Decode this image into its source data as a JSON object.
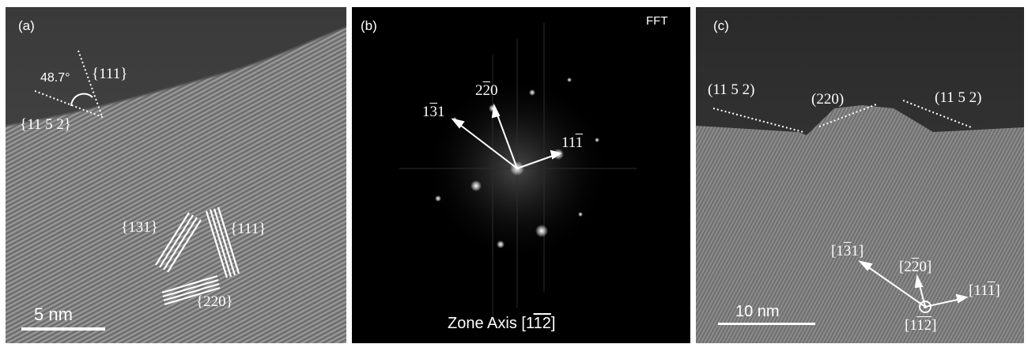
{
  "panel_a": {
    "label": "(a)",
    "angle": "48.7°",
    "facet_top": "{111}",
    "facet_left": "{11 5 2}",
    "lattice_131": "{131}",
    "lattice_111": "{111}",
    "lattice_220": "{220}",
    "scale_bar": "5 nm"
  },
  "panel_b": {
    "label": "(b)",
    "title": "FFT",
    "spot_131": {
      "pre": "1",
      "bar": "3",
      "post": "1"
    },
    "spot_220": {
      "pre": "2",
      "bar": "2",
      "post": "0"
    },
    "spot_111": {
      "pre": "11",
      "bar": "1",
      "post": ""
    },
    "zone_axis": {
      "pre": "Zone Axis [1",
      "bar1": "1",
      "bar2": "2",
      "post": "]"
    }
  },
  "panel_c": {
    "label": "(c)",
    "facet_left": "(11 5 2)",
    "facet_mid": "(220)",
    "facet_right": "(11 5 2)",
    "dir_131": {
      "pre": "[1",
      "bar": "3",
      "post": "1]"
    },
    "dir_220": {
      "pre": "[2",
      "bar": "2",
      "post": "0]"
    },
    "dir_111": {
      "pre": "[11",
      "bar": "1",
      "post": "]"
    },
    "dir_zone": {
      "pre": "[1",
      "bar1": "1",
      "bar2": "2",
      "post": "]"
    },
    "scale_bar": "10 nm"
  }
}
